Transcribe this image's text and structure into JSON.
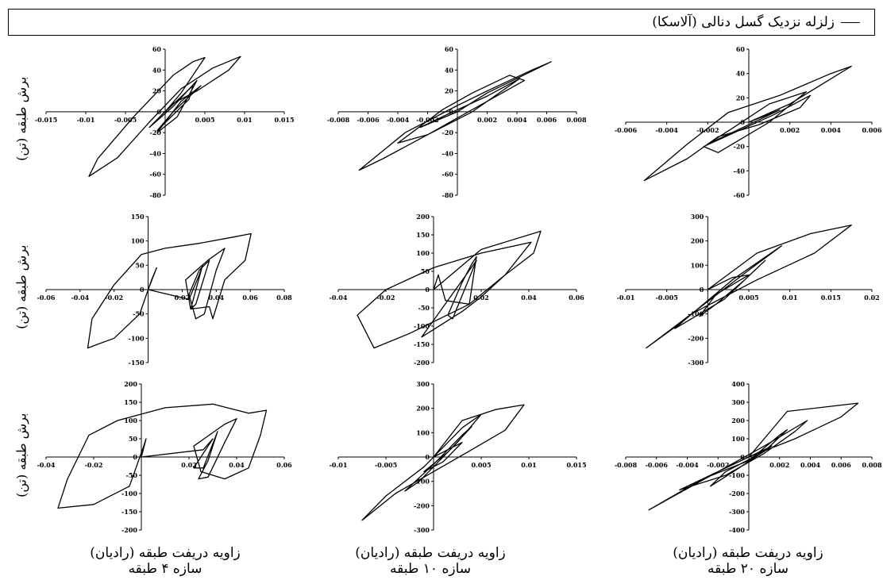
{
  "legend": {
    "label": "زلزله نزدیک گسل دنالی (آلاسکا)"
  },
  "y_axis_label": "برش طبقه (تن)",
  "columns": [
    {
      "xlabel": "زاویه دریفت طبقه (رادیان)",
      "subtitle": "سازه ۴ طبقه"
    },
    {
      "xlabel": "زاویه دریفت طبقه (رادیان)",
      "subtitle": "سازه ۱۰ طبقه"
    },
    {
      "xlabel": "زاویه دریفت طبقه (رادیان)",
      "subtitle": "سازه ۲۰ طبقه"
    }
  ],
  "chart_data": [
    {
      "type": "line",
      "row": 0,
      "col": 0,
      "xlim": [
        -0.015,
        0.015
      ],
      "ylim": [
        -80,
        60
      ],
      "xticks": [
        "-0.015",
        "-0.01",
        "-0.005",
        "0",
        "0.005",
        "0.01",
        "0.015"
      ],
      "yticks": [
        "-80",
        "-60",
        "-40",
        "-20",
        "0",
        "20",
        "40",
        "60"
      ],
      "series": [
        {
          "x": [
            0,
            0.002,
            0.005,
            0.0035,
            0.001,
            -0.004,
            -0.0085,
            -0.0096,
            -0.006,
            -0.002,
            0.002,
            0.006,
            0.0095,
            0.008,
            0.004,
            0.001,
            -0.002,
            0.001,
            0.004,
            0.0015,
            -0.001,
            0.002,
            0.0045,
            0.001,
            -0.001,
            0.003,
            0.0035,
            0
          ],
          "y": [
            0,
            18,
            52,
            48,
            35,
            -5,
            -45,
            -62,
            -44,
            -10,
            22,
            42,
            53,
            40,
            20,
            8,
            -15,
            5,
            30,
            -5,
            -20,
            10,
            25,
            0,
            -18,
            12,
            25,
            0
          ]
        }
      ]
    },
    {
      "type": "line",
      "row": 0,
      "col": 1,
      "xlim": [
        -0.008,
        0.008
      ],
      "ylim": [
        -80,
        60
      ],
      "xticks": [
        "-0.008",
        "-0.006",
        "-0.004",
        "-0.002",
        "0",
        "0.002",
        "0.004",
        "0.006",
        "0.008"
      ],
      "yticks": [
        "-80",
        "-60",
        "-40",
        "-20",
        "0",
        "20",
        "40",
        "60"
      ],
      "series": [
        {
          "x": [
            0,
            0.002,
            0.0063,
            0.005,
            0.002,
            0,
            -0.0035,
            -0.0066,
            -0.005,
            -0.002,
            0,
            0.002,
            0.0045,
            0.0035,
            0.001,
            -0.001,
            -0.004,
            -0.002,
            0.001,
            0.0042,
            0.002,
            -0.0006,
            -0.0025,
            0
          ],
          "y": [
            0,
            18,
            48,
            40,
            20,
            6,
            -20,
            -56,
            -45,
            -22,
            -6,
            10,
            30,
            35,
            18,
            2,
            -30,
            -22,
            0,
            32,
            15,
            -2,
            -15,
            0
          ]
        }
      ]
    },
    {
      "type": "line",
      "row": 0,
      "col": 2,
      "xlim": [
        -0.006,
        0.006
      ],
      "ylim": [
        -60,
        60
      ],
      "xticks": [
        "-0.006",
        "-0.004",
        "-0.002",
        "0",
        "0.002",
        "0.004",
        "0.006"
      ],
      "yticks": [
        "-60",
        "-40",
        "-20",
        "0",
        "20",
        "40",
        "60"
      ],
      "series": [
        {
          "x": [
            0,
            0.002,
            0.005,
            0.004,
            0.0015,
            -0.001,
            -0.003,
            -0.0051,
            -0.003,
            -0.0015,
            0.0005,
            0.0025,
            0.003,
            0.0012,
            -0.0022,
            -0.0015,
            0.001,
            0.0028,
            0.001,
            -0.0008,
            -0.002,
            0.0015,
            0
          ],
          "y": [
            0,
            15,
            46,
            40,
            22,
            8,
            -18,
            -48,
            -30,
            -12,
            -2,
            12,
            22,
            6,
            -20,
            -25,
            0,
            25,
            15,
            -5,
            -18,
            10,
            0
          ]
        }
      ]
    },
    {
      "type": "line",
      "row": 1,
      "col": 0,
      "xlim": [
        -0.06,
        0.08
      ],
      "ylim": [
        -150,
        150
      ],
      "xticks": [
        "-0.06",
        "-0.04",
        "-0.02",
        "0",
        "0.02",
        "0.04",
        "0.06",
        "0.08"
      ],
      "yticks": [
        "-150",
        "-100",
        "-50",
        "0",
        "50",
        "100",
        "150"
      ],
      "series": [
        {
          "x": [
            0,
            0.005,
            0.002,
            -0.005,
            -0.02,
            -0.0355,
            -0.033,
            -0.02,
            -0.004,
            0.01,
            0.03,
            0.05,
            0.0605,
            0.057,
            0.045,
            0.038,
            0.036,
            0.025,
            0.022,
            0.035,
            0.045,
            0.04,
            0.033,
            0.028,
            0.024,
            0.03,
            0.036,
            0.028,
            0.025,
            0.032,
            0.03,
            0.024,
            0
          ],
          "y": [
            0,
            45,
            20,
            -50,
            -100,
            -120,
            -60,
            10,
            72,
            85,
            95,
            108,
            115,
            60,
            20,
            -60,
            -35,
            -40,
            20,
            60,
            85,
            40,
            -50,
            -60,
            -10,
            40,
            60,
            -30,
            -40,
            50,
            30,
            -20,
            0
          ]
        }
      ]
    },
    {
      "type": "line",
      "row": 1,
      "col": 1,
      "xlim": [
        -0.04,
        0.06
      ],
      "ylim": [
        -200,
        200
      ],
      "xticks": [
        "-0.04",
        "-0.02",
        "0",
        "0.02",
        "0.04",
        "0.06"
      ],
      "yticks": [
        "-200",
        "-150",
        "-100",
        "-50",
        "0",
        "50",
        "100",
        "150",
        "200"
      ],
      "series": [
        {
          "x": [
            0,
            0.02,
            0.045,
            0.042,
            0.03,
            0.015,
            -0.01,
            -0.025,
            -0.032,
            -0.02,
            0,
            0.02,
            0.041,
            0.03,
            0.02,
            0.012,
            -0.005,
            0.018,
            0.008,
            0.006,
            0.012,
            0.016,
            0.018,
            0.015,
            0.005,
            0.002,
            0
          ],
          "y": [
            0,
            110,
            160,
            100,
            40,
            -40,
            -120,
            -160,
            -70,
            0,
            60,
            100,
            130,
            40,
            -20,
            -60,
            -130,
            80,
            -80,
            -70,
            20,
            70,
            90,
            -40,
            -30,
            40,
            0
          ]
        }
      ]
    },
    {
      "type": "line",
      "row": 1,
      "col": 2,
      "xlim": [
        -0.01,
        0.02
      ],
      "ylim": [
        -300,
        300
      ],
      "xticks": [
        "-0.01",
        "-0.005",
        "0",
        "0.005",
        "0.01",
        "0.015",
        "0.02"
      ],
      "yticks": [
        "-300",
        "-200",
        "-100",
        "0",
        "100",
        "200",
        "300"
      ],
      "series": [
        {
          "x": [
            0,
            0.006,
            0.0125,
            0.0175,
            0.013,
            0.006,
            -0.002,
            -0.0075,
            -0.003,
            0.003,
            0.009,
            0.005,
            -0.002,
            -0.004,
            0.002,
            0.007,
            0.0045,
            0.001,
            -0.001,
            0.001,
            0.005,
            0.003,
            0
          ],
          "y": [
            0,
            150,
            230,
            265,
            150,
            40,
            -100,
            -240,
            -130,
            40,
            180,
            80,
            -100,
            -160,
            -40,
            120,
            40,
            -60,
            -110,
            -20,
            60,
            50,
            0
          ]
        }
      ]
    },
    {
      "type": "line",
      "row": 2,
      "col": 0,
      "xlim": [
        -0.04,
        0.06
      ],
      "ylim": [
        -200,
        200
      ],
      "xticks": [
        "-0.04",
        "-0.02",
        "0",
        "0.02",
        "0.04",
        "0.06"
      ],
      "yticks": [
        "-200",
        "-150",
        "-100",
        "-50",
        "0",
        "50",
        "100",
        "150",
        "200"
      ],
      "series": [
        {
          "x": [
            0,
            0.002,
            0.001,
            -0.005,
            -0.02,
            -0.035,
            -0.031,
            -0.022,
            -0.01,
            0.01,
            0.03,
            0.045,
            0.0525,
            0.05,
            0.045,
            0.035,
            0.03,
            0.025,
            0.022,
            0.035,
            0.04,
            0.035,
            0.028,
            0.024,
            0.028,
            0.032,
            0.026,
            0.022,
            0.03,
            0.026,
            0
          ],
          "y": [
            0,
            50,
            30,
            -80,
            -130,
            -140,
            -60,
            60,
            100,
            135,
            145,
            120,
            128,
            60,
            -30,
            -60,
            -50,
            -40,
            30,
            90,
            105,
            40,
            -55,
            -60,
            -10,
            70,
            -30,
            -30,
            50,
            20,
            0
          ]
        }
      ]
    },
    {
      "type": "line",
      "row": 2,
      "col": 1,
      "xlim": [
        -0.01,
        0.015
      ],
      "ylim": [
        -300,
        300
      ],
      "xticks": [
        "-0.01",
        "-0.005",
        "0",
        "0.005",
        "0.01",
        "0.015"
      ],
      "yticks": [
        "-300",
        "-200",
        "-100",
        "0",
        "100",
        "200",
        "300"
      ],
      "series": [
        {
          "x": [
            0,
            0.003,
            0.0065,
            0.0095,
            0.0075,
            0.004,
            0,
            -0.004,
            -0.0075,
            -0.005,
            -0.001,
            0.003,
            0.005,
            0.0025,
            -0.0015,
            -0.003,
            0,
            0.003,
            0.004,
            0.0015,
            -0.001,
            0.001,
            0.003,
            0
          ],
          "y": [
            0,
            150,
            195,
            215,
            110,
            30,
            -60,
            -150,
            -260,
            -160,
            -40,
            120,
            175,
            60,
            -100,
            -140,
            -30,
            90,
            125,
            20,
            -60,
            -20,
            60,
            0
          ]
        }
      ]
    },
    {
      "type": "line",
      "row": 2,
      "col": 2,
      "xlim": [
        -0.008,
        0.008
      ],
      "ylim": [
        -400,
        400
      ],
      "xticks": [
        "-0.008",
        "-0.006",
        "-0.004",
        "-0.002",
        "0",
        "0.002",
        "0.004",
        "0.006",
        "0.008"
      ],
      "yticks": [
        "-400",
        "-300",
        "-200",
        "-100",
        "0",
        "100",
        "200",
        "300",
        "400"
      ],
      "series": [
        {
          "x": [
            0,
            0.0025,
            0.0071,
            0.006,
            0.003,
            0,
            -0.003,
            -0.0065,
            -0.005,
            -0.002,
            0.001,
            0.0038,
            0.003,
            0.001,
            -0.0015,
            -0.0045,
            -0.003,
            0,
            0.002,
            0.0025,
            0.001,
            -0.0015,
            -0.0025,
            -0.001,
            0.0015,
            0
          ],
          "y": [
            0,
            250,
            295,
            220,
            100,
            0,
            -120,
            -290,
            -220,
            -80,
            60,
            200,
            140,
            20,
            -100,
            -180,
            -120,
            -20,
            120,
            150,
            30,
            -80,
            -160,
            -80,
            60,
            0
          ]
        }
      ]
    }
  ]
}
